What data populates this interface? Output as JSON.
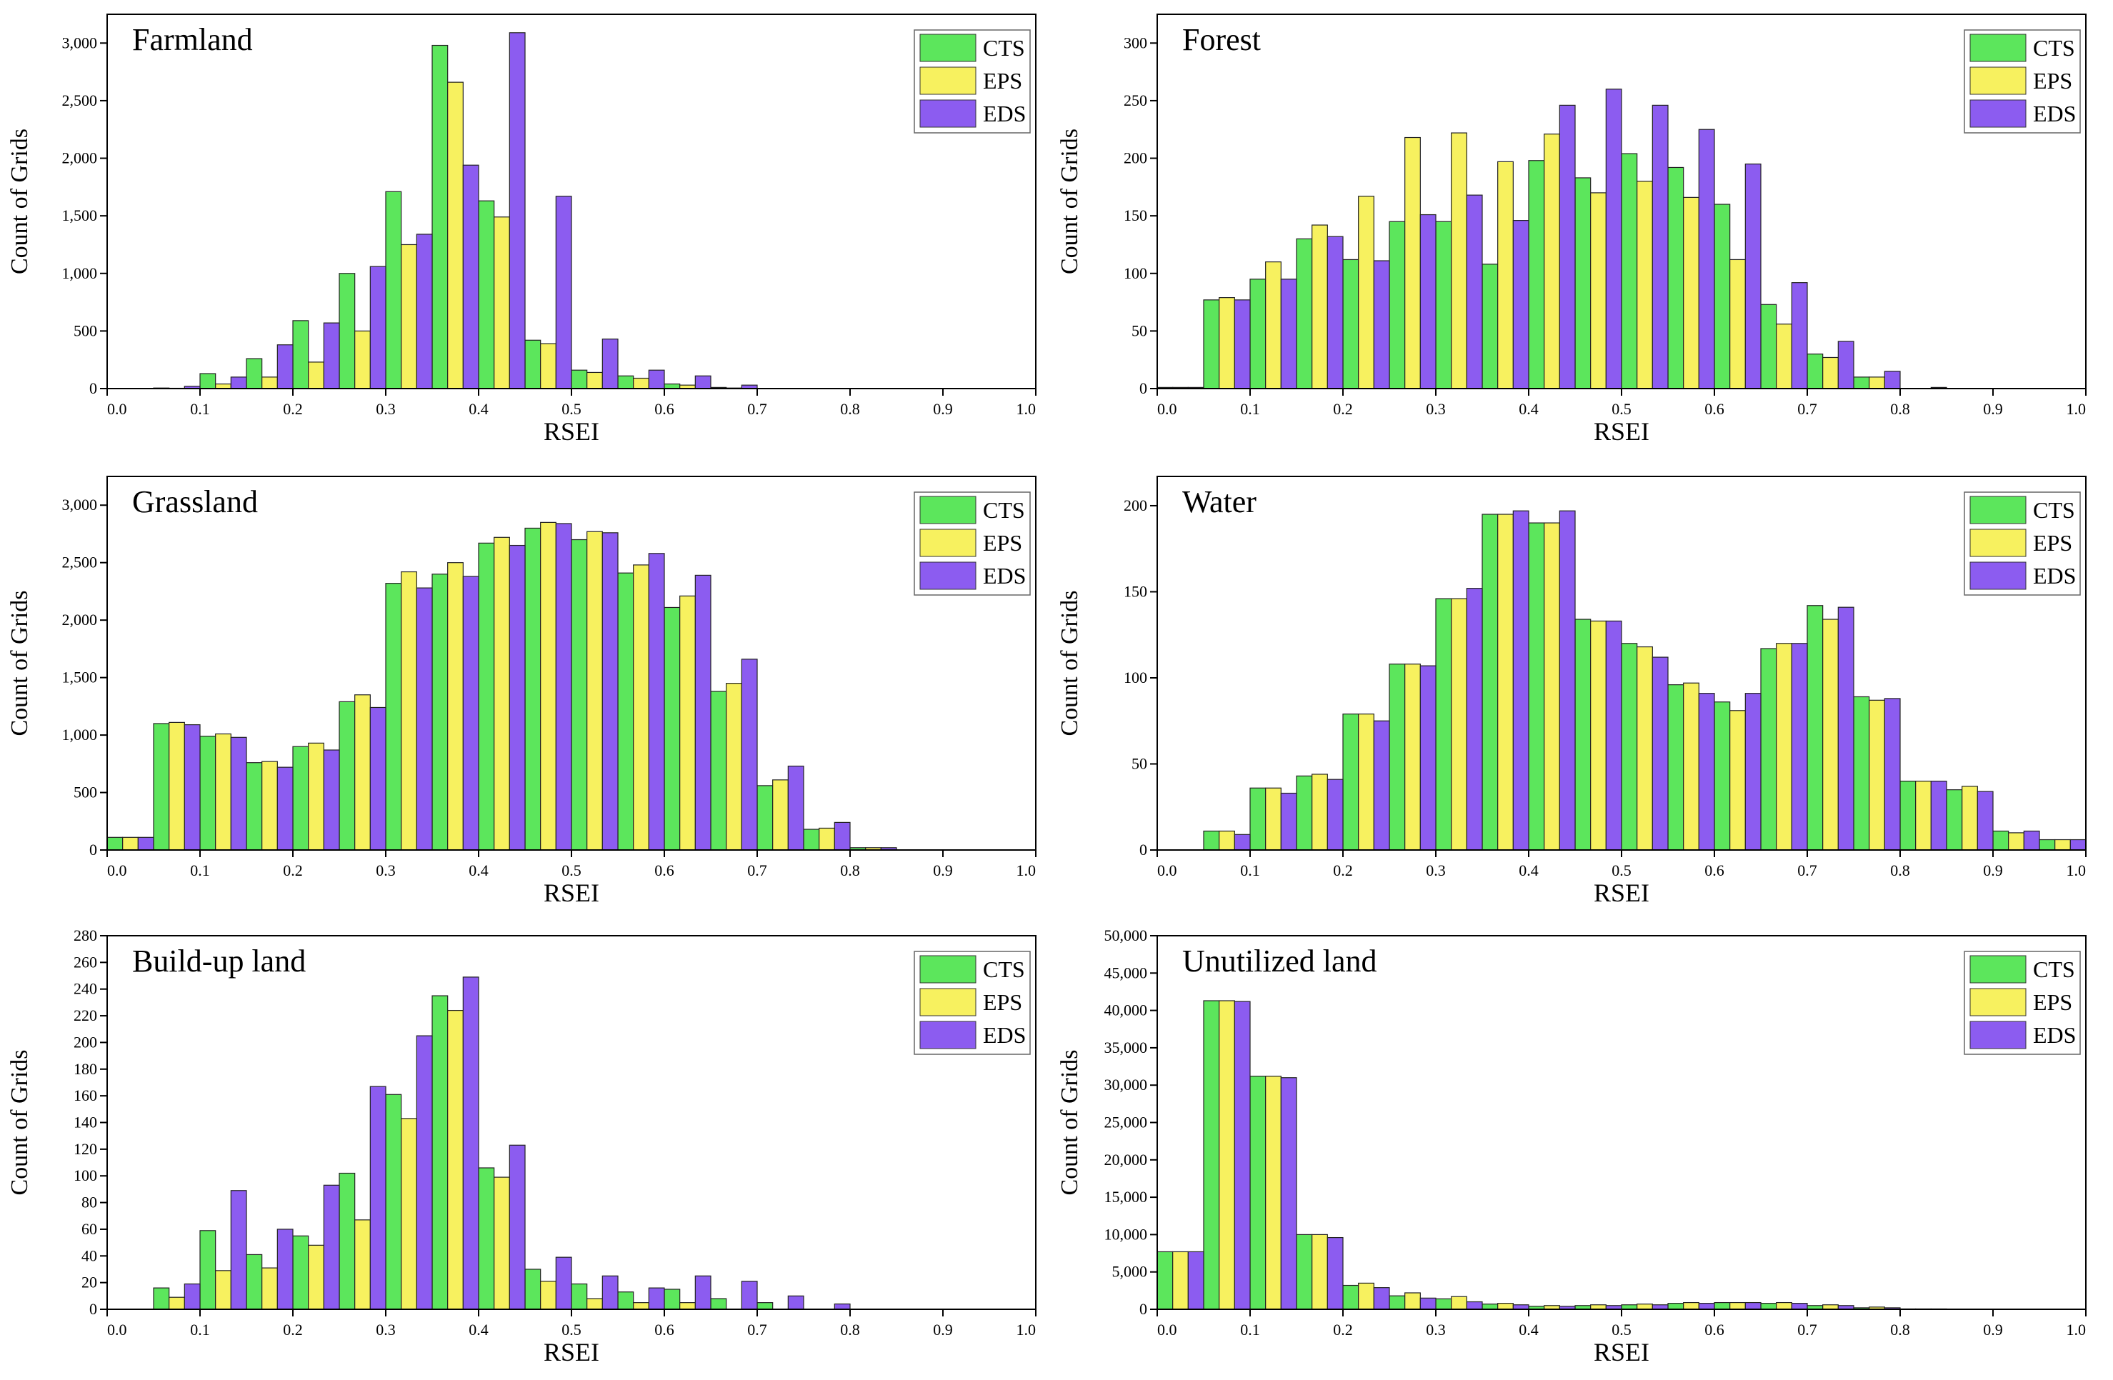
{
  "colors": {
    "CTS": "#5ce65c",
    "EPS": "#f7f15f",
    "EDS": "#8c5cf0"
  },
  "chart_data": [
    {
      "type": "bar",
      "title": "Farmland",
      "xlabel": "RSEI",
      "ylabel": "Count of Grids",
      "xlim": [
        0,
        1
      ],
      "ylim": [
        0,
        3250
      ],
      "xticks": [
        "0.0",
        "0.1",
        "0.2",
        "0.3",
        "0.4",
        "0.5",
        "0.6",
        "0.7",
        "0.8",
        "0.9",
        "1.0"
      ],
      "yticks": [
        0,
        500,
        1000,
        1500,
        2000,
        2500,
        3000
      ],
      "ytick_labels": [
        "0",
        "500",
        "1,000",
        "1,500",
        "2,000",
        "2,500",
        "3,000"
      ],
      "legend": [
        "CTS",
        "EPS",
        "EDS"
      ],
      "bin_starts": [
        0,
        0.05,
        0.1,
        0.15,
        0.2,
        0.25,
        0.3,
        0.35,
        0.4,
        0.45,
        0.5,
        0.55,
        0.6,
        0.65,
        0.7,
        0.75,
        0.8,
        0.85,
        0.9,
        0.95
      ],
      "series": [
        {
          "name": "CTS",
          "values": [
            0,
            5,
            130,
            260,
            590,
            1000,
            1710,
            2980,
            1630,
            420,
            160,
            110,
            40,
            10,
            0,
            0,
            0,
            0,
            0,
            0
          ]
        },
        {
          "name": "EPS",
          "values": [
            0,
            3,
            40,
            100,
            230,
            500,
            1250,
            2660,
            1490,
            390,
            140,
            90,
            30,
            5,
            0,
            0,
            0,
            0,
            0,
            0
          ]
        },
        {
          "name": "EDS",
          "values": [
            0,
            20,
            100,
            380,
            570,
            1060,
            1340,
            1940,
            3090,
            1670,
            430,
            160,
            110,
            30,
            0,
            0,
            0,
            0,
            0,
            0
          ]
        }
      ]
    },
    {
      "type": "bar",
      "title": "Forest",
      "xlabel": "RSEI",
      "ylabel": "Count of Grids",
      "xlim": [
        0,
        1
      ],
      "ylim": [
        0,
        325
      ],
      "xticks": [
        "0.0",
        "0.1",
        "0.2",
        "0.3",
        "0.4",
        "0.5",
        "0.6",
        "0.7",
        "0.8",
        "0.9",
        "1.0"
      ],
      "yticks": [
        0,
        50,
        100,
        150,
        200,
        250,
        300
      ],
      "ytick_labels": [
        "0",
        "50",
        "100",
        "150",
        "200",
        "250",
        "300"
      ],
      "legend": [
        "CTS",
        "EPS",
        "EDS"
      ],
      "bin_starts": [
        0,
        0.05,
        0.1,
        0.15,
        0.2,
        0.25,
        0.3,
        0.35,
        0.4,
        0.45,
        0.5,
        0.55,
        0.6,
        0.65,
        0.7,
        0.75,
        0.8,
        0.85,
        0.9,
        0.95
      ],
      "series": [
        {
          "name": "CTS",
          "values": [
            1,
            77,
            95,
            130,
            112,
            145,
            145,
            108,
            198,
            183,
            204,
            192,
            160,
            73,
            30,
            10,
            0,
            0,
            0,
            0
          ]
        },
        {
          "name": "EPS",
          "values": [
            1,
            79,
            110,
            142,
            167,
            218,
            222,
            197,
            221,
            170,
            180,
            166,
            112,
            56,
            27,
            10,
            0,
            0,
            0,
            0
          ]
        },
        {
          "name": "EDS",
          "values": [
            1,
            77,
            95,
            132,
            111,
            151,
            168,
            146,
            246,
            260,
            246,
            225,
            195,
            92,
            41,
            15,
            1,
            0,
            0,
            0
          ]
        }
      ]
    },
    {
      "type": "bar",
      "title": "Grassland",
      "xlabel": "RSEI",
      "ylabel": "Count of Grids",
      "xlim": [
        0,
        1
      ],
      "ylim": [
        0,
        3250
      ],
      "xticks": [
        "0.0",
        "0.1",
        "0.2",
        "0.3",
        "0.4",
        "0.5",
        "0.6",
        "0.7",
        "0.8",
        "0.9",
        "1.0"
      ],
      "yticks": [
        0,
        500,
        1000,
        1500,
        2000,
        2500,
        3000
      ],
      "ytick_labels": [
        "0",
        "500",
        "1,000",
        "1,500",
        "2,000",
        "2,500",
        "3,000"
      ],
      "legend": [
        "CTS",
        "EPS",
        "EDS"
      ],
      "bin_starts": [
        0,
        0.05,
        0.1,
        0.15,
        0.2,
        0.25,
        0.3,
        0.35,
        0.4,
        0.45,
        0.5,
        0.55,
        0.6,
        0.65,
        0.7,
        0.75,
        0.8,
        0.85,
        0.9,
        0.95
      ],
      "series": [
        {
          "name": "CTS",
          "values": [
            110,
            1100,
            990,
            760,
            900,
            1290,
            2320,
            2400,
            2670,
            2800,
            2700,
            2410,
            2110,
            1380,
            560,
            180,
            20,
            0,
            0,
            0
          ]
        },
        {
          "name": "EPS",
          "values": [
            110,
            1110,
            1010,
            770,
            930,
            1350,
            2420,
            2500,
            2720,
            2850,
            2770,
            2480,
            2210,
            1450,
            610,
            190,
            20,
            0,
            0,
            0
          ]
        },
        {
          "name": "EDS",
          "values": [
            110,
            1090,
            980,
            720,
            870,
            1240,
            2280,
            2380,
            2650,
            2840,
            2760,
            2580,
            2390,
            1660,
            730,
            240,
            20,
            0,
            0,
            0
          ]
        }
      ]
    },
    {
      "type": "bar",
      "title": "Water",
      "xlabel": "RSEI",
      "ylabel": "Count of Grids",
      "xlim": [
        0,
        1
      ],
      "ylim": [
        0,
        217
      ],
      "xticks": [
        "0.0",
        "0.1",
        "0.2",
        "0.3",
        "0.4",
        "0.5",
        "0.6",
        "0.7",
        "0.8",
        "0.9",
        "1.0"
      ],
      "yticks": [
        0,
        50,
        100,
        150,
        200
      ],
      "ytick_labels": [
        "0",
        "50",
        "100",
        "150",
        "200"
      ],
      "legend": [
        "CTS",
        "EPS",
        "EDS"
      ],
      "bin_starts": [
        0,
        0.05,
        0.1,
        0.15,
        0.2,
        0.25,
        0.3,
        0.35,
        0.4,
        0.45,
        0.5,
        0.55,
        0.6,
        0.65,
        0.7,
        0.75,
        0.8,
        0.85,
        0.9,
        0.95
      ],
      "series": [
        {
          "name": "CTS",
          "values": [
            0,
            11,
            36,
            43,
            79,
            108,
            146,
            195,
            190,
            134,
            120,
            96,
            86,
            117,
            142,
            89,
            40,
            35,
            11,
            6
          ]
        },
        {
          "name": "EPS",
          "values": [
            0,
            11,
            36,
            44,
            79,
            108,
            146,
            195,
            190,
            133,
            118,
            97,
            81,
            120,
            134,
            87,
            40,
            37,
            10,
            6
          ]
        },
        {
          "name": "EDS",
          "values": [
            0,
            9,
            33,
            41,
            75,
            107,
            152,
            197,
            197,
            133,
            112,
            91,
            91,
            120,
            141,
            88,
            40,
            34,
            11,
            6
          ]
        }
      ]
    },
    {
      "type": "bar",
      "title": "Build-up land",
      "xlabel": "RSEI",
      "ylabel": "Count of Grids",
      "xlim": [
        0,
        1
      ],
      "ylim": [
        0,
        280
      ],
      "xticks": [
        "0.0",
        "0.1",
        "0.2",
        "0.3",
        "0.4",
        "0.5",
        "0.6",
        "0.7",
        "0.8",
        "0.9",
        "1.0"
      ],
      "yticks": [
        0,
        20,
        40,
        60,
        80,
        100,
        120,
        140,
        160,
        180,
        200,
        220,
        240,
        260,
        280
      ],
      "ytick_labels": [
        "0",
        "20",
        "40",
        "60",
        "80",
        "100",
        "120",
        "140",
        "160",
        "180",
        "200",
        "220",
        "240",
        "260",
        "280"
      ],
      "legend": [
        "CTS",
        "EPS",
        "EDS"
      ],
      "bin_starts": [
        0,
        0.05,
        0.1,
        0.15,
        0.2,
        0.25,
        0.3,
        0.35,
        0.4,
        0.45,
        0.5,
        0.55,
        0.6,
        0.65,
        0.7,
        0.75,
        0.8,
        0.85,
        0.9,
        0.95
      ],
      "series": [
        {
          "name": "CTS",
          "values": [
            0,
            16,
            59,
            41,
            55,
            102,
            161,
            235,
            106,
            30,
            19,
            13,
            15,
            8,
            5,
            0,
            0,
            0,
            0,
            0
          ]
        },
        {
          "name": "EPS",
          "values": [
            0,
            9,
            29,
            31,
            48,
            67,
            143,
            224,
            99,
            21,
            8,
            5,
            5,
            0,
            0,
            0,
            0,
            0,
            0,
            0
          ]
        },
        {
          "name": "EDS",
          "values": [
            0,
            19,
            89,
            60,
            93,
            167,
            205,
            249,
            123,
            39,
            25,
            16,
            25,
            21,
            10,
            4,
            0,
            0,
            0,
            0
          ]
        }
      ]
    },
    {
      "type": "bar",
      "title": "Unutilized land",
      "xlabel": "RSEI",
      "ylabel": "Count of Grids",
      "xlim": [
        0,
        1
      ],
      "ylim": [
        0,
        50000
      ],
      "xticks": [
        "0.0",
        "0.1",
        "0.2",
        "0.3",
        "0.4",
        "0.5",
        "0.6",
        "0.7",
        "0.8",
        "0.9",
        "1.0"
      ],
      "yticks": [
        0,
        5000,
        10000,
        15000,
        20000,
        25000,
        30000,
        35000,
        40000,
        45000,
        50000
      ],
      "ytick_labels": [
        "0",
        "5,000",
        "10,000",
        "15,000",
        "20,000",
        "25,000",
        "30,000",
        "35,000",
        "40,000",
        "45,000",
        "50,000"
      ],
      "legend": [
        "CTS",
        "EPS",
        "EDS"
      ],
      "bin_starts": [
        0,
        0.05,
        0.1,
        0.15,
        0.2,
        0.25,
        0.3,
        0.35,
        0.4,
        0.45,
        0.5,
        0.55,
        0.6,
        0.65,
        0.7,
        0.75,
        0.8,
        0.85,
        0.9,
        0.95
      ],
      "series": [
        {
          "name": "CTS",
          "values": [
            7700,
            41300,
            31200,
            10000,
            3200,
            1800,
            1400,
            700,
            400,
            500,
            600,
            800,
            900,
            800,
            500,
            200,
            50,
            0,
            0,
            0
          ]
        },
        {
          "name": "EPS",
          "values": [
            7700,
            41300,
            31200,
            10000,
            3500,
            2200,
            1700,
            800,
            500,
            600,
            700,
            900,
            900,
            900,
            600,
            300,
            50,
            0,
            0,
            0
          ]
        },
        {
          "name": "EDS",
          "values": [
            7700,
            41200,
            31000,
            9600,
            2900,
            1500,
            1000,
            600,
            400,
            500,
            600,
            800,
            900,
            800,
            500,
            200,
            50,
            0,
            0,
            0
          ]
        }
      ]
    }
  ]
}
